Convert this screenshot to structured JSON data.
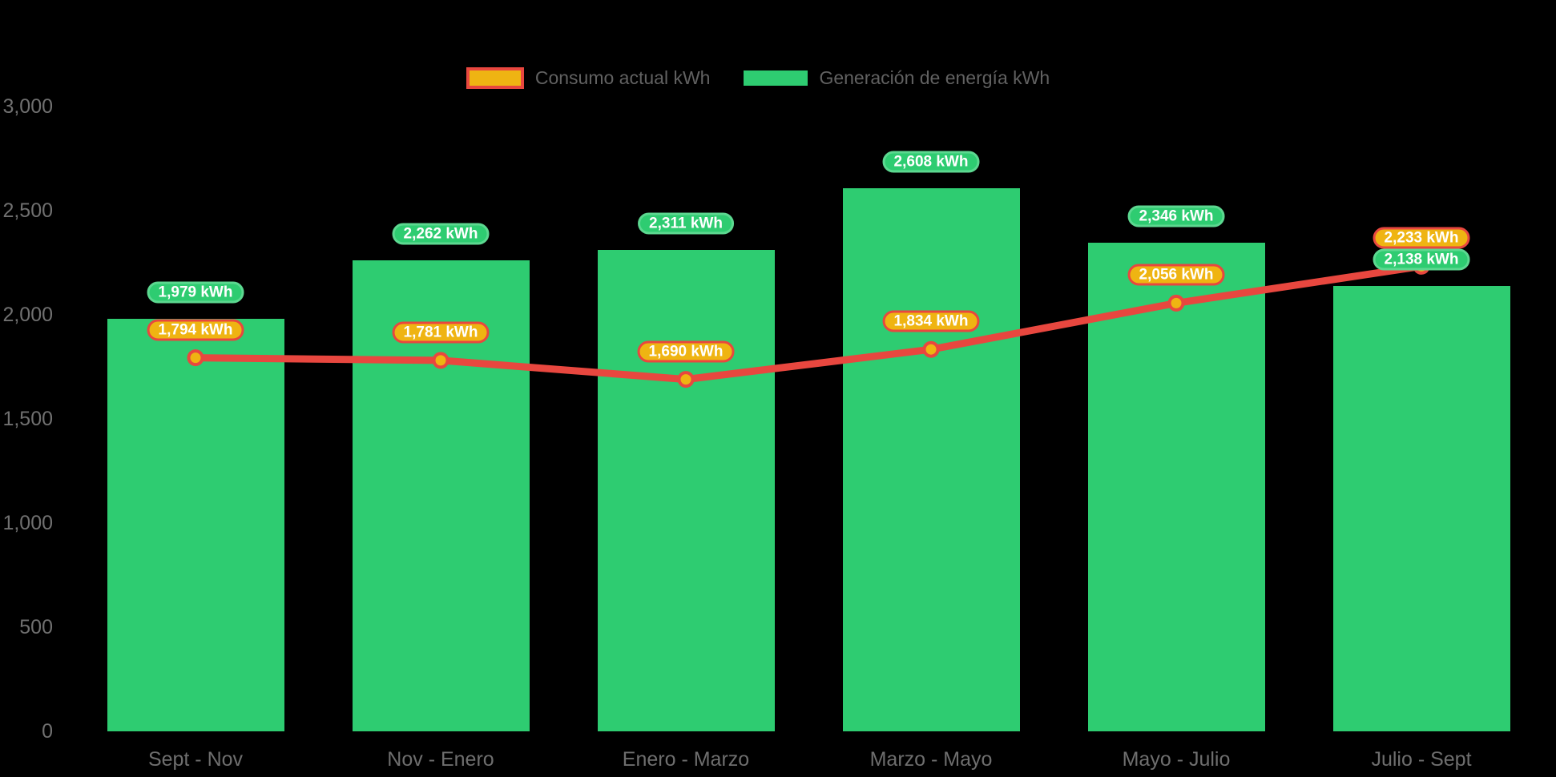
{
  "legend": {
    "consumo_label": "Consumo actual kWh",
    "generacion_label": "Generación de energía kWh"
  },
  "colors": {
    "background": "#000000",
    "bar_green": "#2ecc71",
    "green_pill_border": "#5cd890",
    "line_red": "#e8473f",
    "marker_yellow": "#efb412",
    "orange_pill_bg": "#efb412",
    "orange_pill_border": "#e8473f",
    "pill_text": "#ffffff",
    "axis_text": "#707070",
    "legend_text": "#616161"
  },
  "chart_data": {
    "type": "bar+line",
    "title": "",
    "xlabel": "",
    "ylabel": "",
    "categories": [
      "Sept - Nov",
      "Nov - Enero",
      "Enero - Marzo",
      "Marzo - Mayo",
      "Mayo - Julio",
      "Julio - Sept"
    ],
    "series": [
      {
        "name": "Consumo actual kWh",
        "type": "line",
        "color": "#e8473f",
        "marker_color": "#efb412",
        "values": [
          1794,
          1781,
          1690,
          1834,
          2056,
          2233
        ],
        "labels": [
          "1,794 kWh",
          "1,781 kWh",
          "1,690 kWh",
          "1,834 kWh",
          "2,056 kWh",
          "2,233 kWh"
        ]
      },
      {
        "name": "Generación de energía kWh",
        "type": "bar",
        "color": "#2ecc71",
        "values": [
          1979,
          2262,
          2311,
          2608,
          2346,
          2138
        ],
        "labels": [
          "1,979 kWh",
          "2,262 kWh",
          "2,311 kWh",
          "2,608 kWh",
          "2,346 kWh",
          "2,138 kWh"
        ]
      }
    ],
    "yticks": {
      "values": [
        0,
        500,
        1000,
        1500,
        2000,
        2500,
        3000
      ],
      "labels": [
        "0",
        "500",
        "1,000",
        "1,500",
        "2,000",
        "2,500",
        "3,000"
      ]
    },
    "ylim": [
      0,
      3000
    ],
    "grid": false,
    "legend_position": "top-center"
  }
}
